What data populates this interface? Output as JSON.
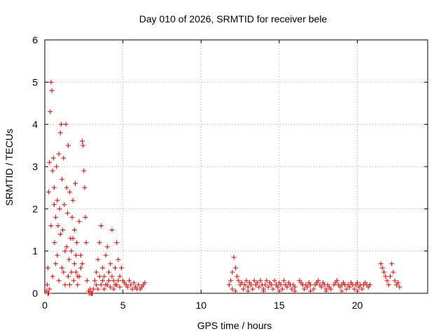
{
  "chart_data": {
    "type": "scatter",
    "title": "Day 010 of 2026, SRMTID for receiver bele",
    "xlabel": "GPS time / hours",
    "ylabel": "SRMTID / TECUs",
    "xlim": [
      0,
      24.5
    ],
    "ylim": [
      0,
      6
    ],
    "xticks": [
      0,
      5,
      10,
      15,
      20
    ],
    "yticks": [
      0,
      1,
      2,
      3,
      4,
      5,
      6
    ],
    "grid": true,
    "marker": "plus",
    "marker_color": "#e00000",
    "series": [
      {
        "name": "SRMTID",
        "points": [
          [
            0.1,
            0.05
          ],
          [
            0.15,
            0.2
          ],
          [
            0.2,
            0.6
          ],
          [
            0.25,
            2.4
          ],
          [
            0.3,
            3.1
          ],
          [
            0.35,
            4.3
          ],
          [
            0.4,
            5.0
          ],
          [
            0.45,
            4.8
          ],
          [
            0.5,
            2.9
          ],
          [
            0.55,
            3.2
          ],
          [
            0.6,
            2.5
          ],
          [
            0.62,
            1.2
          ],
          [
            0.7,
            1.8
          ],
          [
            0.75,
            3.0
          ],
          [
            0.8,
            2.2
          ],
          [
            0.85,
            1.6
          ],
          [
            0.9,
            3.3
          ],
          [
            0.95,
            2.0
          ],
          [
            1.0,
            3.8
          ],
          [
            1.05,
            4.0
          ],
          [
            1.1,
            2.7
          ],
          [
            1.15,
            1.5
          ],
          [
            1.2,
            3.2
          ],
          [
            1.25,
            2.1
          ],
          [
            1.3,
            1.0
          ],
          [
            1.35,
            4.0
          ],
          [
            1.4,
            2.5
          ],
          [
            1.45,
            1.9
          ],
          [
            1.5,
            3.5
          ],
          [
            1.55,
            0.8
          ],
          [
            1.6,
            2.4
          ],
          [
            1.65,
            1.3
          ],
          [
            1.7,
            0.5
          ],
          [
            1.75,
            1.8
          ],
          [
            1.8,
            2.2
          ],
          [
            1.85,
            0.3
          ],
          [
            1.9,
            1.5
          ],
          [
            1.95,
            2.6
          ],
          [
            2.0,
            0.9
          ],
          [
            2.05,
            1.2
          ],
          [
            2.1,
            0.4
          ],
          [
            2.2,
            1.7
          ],
          [
            2.3,
            0.6
          ],
          [
            2.4,
            3.6
          ],
          [
            2.45,
            3.5
          ],
          [
            2.5,
            2.9
          ],
          [
            2.55,
            2.5
          ],
          [
            2.6,
            1.8
          ],
          [
            2.65,
            1.2
          ],
          [
            2.7,
            0.3
          ],
          [
            2.8,
            0.05
          ],
          [
            2.9,
            0.1
          ],
          [
            3.0,
            0.0
          ],
          [
            0.3,
            0.1
          ],
          [
            0.5,
            0.4
          ],
          [
            0.7,
            0.7
          ],
          [
            0.9,
            0.3
          ],
          [
            1.1,
            0.6
          ],
          [
            1.3,
            0.2
          ],
          [
            1.5,
            0.4
          ],
          [
            1.7,
            1.0
          ],
          [
            1.9,
            0.7
          ],
          [
            2.1,
            0.2
          ],
          [
            2.3,
            0.9
          ],
          [
            0.4,
            1.6
          ],
          [
            0.6,
            2.1
          ],
          [
            0.8,
            0.9
          ],
          [
            1.0,
            1.4
          ],
          [
            1.2,
            0.5
          ],
          [
            1.4,
            1.1
          ],
          [
            1.6,
            0.2
          ],
          [
            1.8,
            1.3
          ],
          [
            2.0,
            0.5
          ],
          [
            2.2,
            0.4
          ],
          [
            2.4,
            0.7
          ],
          [
            0.2,
            0.0
          ],
          [
            0.25,
            0.0
          ],
          [
            2.85,
            0.0
          ],
          [
            2.95,
            0.0
          ],
          [
            3.05,
            0.0
          ],
          [
            3.1,
            0.1
          ],
          [
            3.2,
            0.3
          ],
          [
            3.3,
            0.5
          ],
          [
            3.4,
            0.8
          ],
          [
            3.5,
            1.2
          ],
          [
            3.6,
            1.6
          ],
          [
            3.7,
            0.6
          ],
          [
            3.8,
            0.4
          ],
          [
            3.9,
            0.9
          ],
          [
            4.0,
            1.1
          ],
          [
            4.1,
            0.5
          ],
          [
            4.2,
            0.7
          ],
          [
            4.3,
            1.5
          ],
          [
            4.4,
            0.3
          ],
          [
            4.5,
            0.6
          ],
          [
            4.6,
            1.2
          ],
          [
            4.7,
            0.8
          ],
          [
            4.8,
            0.4
          ],
          [
            4.9,
            0.6
          ],
          [
            5.0,
            0.3
          ],
          [
            5.1,
            0.25
          ],
          [
            5.2,
            0.2
          ],
          [
            5.3,
            0.15
          ],
          [
            5.4,
            0.3
          ],
          [
            5.5,
            0.2
          ],
          [
            5.6,
            0.1
          ],
          [
            5.7,
            0.25
          ],
          [
            5.8,
            0.15
          ],
          [
            5.9,
            0.1
          ],
          [
            6.0,
            0.2
          ],
          [
            6.1,
            0.1
          ],
          [
            6.2,
            0.15
          ],
          [
            6.3,
            0.2
          ],
          [
            6.4,
            0.25
          ],
          [
            3.3,
            0.2
          ],
          [
            3.5,
            0.4
          ],
          [
            3.7,
            0.3
          ],
          [
            3.9,
            0.2
          ],
          [
            4.1,
            0.3
          ],
          [
            4.3,
            0.4
          ],
          [
            4.5,
            0.2
          ],
          [
            4.7,
            0.3
          ],
          [
            3.4,
            0.1
          ],
          [
            3.6,
            0.2
          ],
          [
            3.8,
            0.1
          ],
          [
            4.0,
            0.2
          ],
          [
            4.2,
            0.15
          ],
          [
            4.4,
            0.1
          ],
          [
            4.6,
            0.2
          ],
          [
            4.8,
            0.15
          ],
          [
            11.8,
            0.2
          ],
          [
            11.9,
            0.3
          ],
          [
            12.0,
            0.5
          ],
          [
            12.1,
            0.85
          ],
          [
            12.2,
            0.6
          ],
          [
            12.3,
            0.4
          ],
          [
            12.4,
            0.3
          ],
          [
            12.5,
            0.2
          ],
          [
            12.6,
            0.25
          ],
          [
            12.7,
            0.1
          ],
          [
            12.8,
            0.2
          ],
          [
            12.9,
            0.3
          ],
          [
            13.0,
            0.15
          ],
          [
            13.1,
            0.25
          ],
          [
            13.2,
            0.2
          ],
          [
            13.3,
            0.1
          ],
          [
            13.4,
            0.3
          ],
          [
            13.5,
            0.2
          ],
          [
            13.6,
            0.25
          ],
          [
            13.7,
            0.15
          ],
          [
            13.8,
            0.3
          ],
          [
            13.9,
            0.2
          ],
          [
            14.0,
            0.1
          ],
          [
            14.1,
            0.2
          ],
          [
            14.2,
            0.3
          ],
          [
            14.3,
            0.15
          ],
          [
            14.4,
            0.25
          ],
          [
            14.5,
            0.2
          ],
          [
            14.6,
            0.1
          ],
          [
            14.7,
            0.3
          ],
          [
            14.8,
            0.2
          ],
          [
            14.9,
            0.15
          ],
          [
            15.0,
            0.25
          ],
          [
            15.1,
            0.2
          ],
          [
            15.2,
            0.1
          ],
          [
            15.3,
            0.3
          ],
          [
            15.4,
            0.2
          ],
          [
            15.5,
            0.15
          ],
          [
            15.6,
            0.25
          ],
          [
            15.7,
            0.2
          ],
          [
            15.8,
            0.1
          ],
          [
            15.9,
            0.2
          ],
          [
            16.0,
            0.15
          ],
          [
            16.3,
            0.3
          ],
          [
            16.4,
            0.25
          ],
          [
            16.5,
            0.2
          ],
          [
            16.6,
            0.1
          ],
          [
            16.7,
            0.2
          ],
          [
            16.8,
            0.15
          ],
          [
            16.9,
            0.25
          ],
          [
            17.0,
            0.2
          ],
          [
            17.2,
            0.1
          ],
          [
            17.3,
            0.2
          ],
          [
            17.4,
            0.25
          ],
          [
            17.5,
            0.3
          ],
          [
            17.6,
            0.2
          ],
          [
            17.7,
            0.15
          ],
          [
            17.8,
            0.25
          ],
          [
            17.9,
            0.2
          ],
          [
            18.0,
            0.1
          ],
          [
            18.1,
            0.2
          ],
          [
            18.2,
            0.15
          ],
          [
            18.3,
            0.1
          ],
          [
            18.5,
            0.2
          ],
          [
            18.6,
            0.25
          ],
          [
            18.7,
            0.3
          ],
          [
            18.8,
            0.2
          ],
          [
            18.9,
            0.15
          ],
          [
            19.0,
            0.2
          ],
          [
            19.1,
            0.25
          ],
          [
            19.2,
            0.2
          ],
          [
            19.3,
            0.1
          ],
          [
            19.4,
            0.2
          ],
          [
            19.5,
            0.15
          ],
          [
            19.6,
            0.25
          ],
          [
            19.7,
            0.2
          ],
          [
            19.8,
            0.1
          ],
          [
            19.9,
            0.2
          ],
          [
            20.0,
            0.25
          ],
          [
            20.1,
            0.15
          ],
          [
            20.2,
            0.2
          ],
          [
            20.3,
            0.1
          ],
          [
            20.4,
            0.2
          ],
          [
            20.5,
            0.25
          ],
          [
            20.6,
            0.2
          ],
          [
            20.7,
            0.15
          ],
          [
            20.8,
            0.2
          ],
          [
            21.5,
            0.7
          ],
          [
            21.6,
            0.6
          ],
          [
            21.7,
            0.5
          ],
          [
            21.8,
            0.4
          ],
          [
            21.9,
            0.3
          ],
          [
            22.0,
            0.2
          ],
          [
            22.1,
            0.4
          ],
          [
            22.2,
            0.7
          ],
          [
            22.3,
            0.5
          ],
          [
            22.4,
            0.3
          ],
          [
            22.5,
            0.2
          ],
          [
            22.6,
            0.25
          ],
          [
            22.7,
            0.15
          ],
          [
            12.0,
            0.1
          ],
          [
            12.2,
            0.05
          ],
          [
            13.0,
            0.05
          ],
          [
            14.0,
            0.05
          ],
          [
            15.0,
            0.05
          ],
          [
            16.0,
            0.05
          ],
          [
            17.0,
            0.05
          ],
          [
            18.0,
            0.05
          ],
          [
            19.0,
            0.05
          ],
          [
            20.0,
            0.05
          ]
        ]
      }
    ]
  }
}
